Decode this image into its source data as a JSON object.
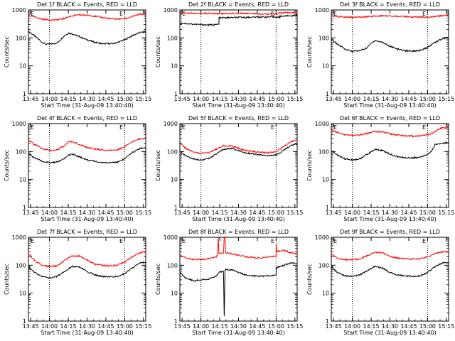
{
  "chart_data": [
    {
      "type": "line",
      "title": "Det 1f BLACK = Events, RED = LLD",
      "xlabel": "Start Time (31-Aug-09 13:40:40)",
      "ylabel": "Counts/sec",
      "ylim": [
        1,
        1000
      ],
      "yscale": "log",
      "xlim": [
        13.72,
        15.28
      ],
      "x_ticks": [
        "13:45",
        "14:00",
        "14:15",
        "14:30",
        "14:45",
        "15:00",
        "15:15"
      ],
      "y_ticks": [
        "1",
        "10",
        "100",
        "1000"
      ],
      "vlines": [
        14.0,
        15.0
      ],
      "markers": [
        "E",
        "E"
      ],
      "series": [
        {
          "color": "#000000",
          "x": [
            13.72,
            13.8,
            13.9,
            13.95,
            14.0,
            14.1,
            14.2,
            14.25,
            14.3,
            14.4,
            14.5,
            14.6,
            14.7,
            14.8,
            14.85,
            14.9,
            15.0,
            15.1,
            15.2,
            15.28
          ],
          "values": [
            170,
            120,
            70,
            60,
            60,
            65,
            120,
            150,
            140,
            110,
            85,
            70,
            62,
            62,
            63,
            68,
            85,
            120,
            155,
            165
          ]
        },
        {
          "color": "#ff0000",
          "x": [
            13.72,
            13.8,
            13.9,
            14.0,
            14.1,
            14.2,
            14.3,
            14.4,
            14.5,
            14.6,
            14.7,
            14.8,
            14.9,
            15.0,
            15.1,
            15.2,
            15.28
          ],
          "values": [
            640,
            560,
            470,
            440,
            440,
            500,
            620,
            660,
            650,
            600,
            540,
            490,
            470,
            490,
            580,
            700,
            720
          ]
        }
      ]
    },
    {
      "type": "line",
      "title": "Det 2f BLACK = Events, RED = LLD",
      "xlabel": "Start Time (31-Aug-09 13:40:40)",
      "ylabel": "Counts/sec",
      "ylim": [
        1,
        1000
      ],
      "yscale": "log",
      "xlim": [
        13.72,
        15.28
      ],
      "x_ticks": [
        "13:45",
        "14:00",
        "14:15",
        "14:30",
        "14:45",
        "15:00",
        "15:15"
      ],
      "y_ticks": [
        "1",
        "10",
        "100",
        "1000"
      ],
      "vlines": [
        14.0,
        15.0
      ],
      "markers": [
        "E",
        "E"
      ],
      "series": [
        {
          "color": "#000000",
          "x": [
            13.72,
            13.9,
            14.0,
            14.1,
            14.2,
            14.24,
            14.24,
            14.5,
            14.8,
            15.0,
            15.05,
            15.05,
            15.2,
            15.28
          ],
          "values": [
            340,
            310,
            300,
            290,
            300,
            310,
            520,
            540,
            560,
            560,
            540,
            600,
            620,
            640
          ]
        },
        {
          "color": "#ff0000",
          "x": [
            13.72,
            14.0,
            14.3,
            14.6,
            14.9,
            15.0,
            15.05,
            15.2,
            15.28
          ],
          "values": [
            780,
            760,
            740,
            760,
            720,
            700,
            800,
            780,
            800
          ]
        }
      ]
    },
    {
      "type": "line",
      "title": "Det 3f BLACK = Events, RED = LLD",
      "xlabel": "Start Time (31-Aug-09 13:40:40)",
      "ylabel": "Counts/sec",
      "ylim": [
        1,
        1000
      ],
      "yscale": "log",
      "xlim": [
        13.72,
        15.28
      ],
      "x_ticks": [
        "13:45",
        "14:00",
        "14:15",
        "14:30",
        "14:45",
        "15:00",
        "15:15"
      ],
      "y_ticks": [
        "1",
        "10",
        "100",
        "1000"
      ],
      "vlines": [
        14.0,
        15.0
      ],
      "markers": [
        "E",
        "E"
      ],
      "series": [
        {
          "color": "#000000",
          "x": [
            13.72,
            13.8,
            13.9,
            14.0,
            14.1,
            14.2,
            14.25,
            14.3,
            14.4,
            14.5,
            14.6,
            14.7,
            14.8,
            14.9,
            15.0,
            15.1,
            15.2,
            15.28
          ],
          "values": [
            90,
            60,
            40,
            33,
            35,
            45,
            65,
            80,
            70,
            50,
            40,
            35,
            34,
            35,
            45,
            70,
            95,
            105
          ]
        },
        {
          "color": "#ff0000",
          "x": [
            13.72,
            13.9,
            14.0,
            14.2,
            14.4,
            14.6,
            14.8,
            15.0,
            15.2,
            15.28
          ],
          "values": [
            600,
            560,
            540,
            580,
            620,
            600,
            560,
            560,
            620,
            650
          ]
        }
      ]
    },
    {
      "type": "line",
      "title": "Det 4f BLACK = Events, RED = LLD",
      "xlabel": "Start Time (31-Aug-09 13:40:40)",
      "ylabel": "Counts/sec",
      "ylim": [
        1,
        1000
      ],
      "yscale": "log",
      "xlim": [
        13.72,
        15.28
      ],
      "x_ticks": [
        "13:45",
        "14:00",
        "14:15",
        "14:30",
        "14:45",
        "15:00",
        "15:15"
      ],
      "y_ticks": [
        "1",
        "10",
        "100",
        "1000"
      ],
      "vlines": [
        14.0,
        15.0
      ],
      "markers": [
        "E",
        "E"
      ],
      "series": [
        {
          "color": "#000000",
          "x": [
            13.72,
            13.8,
            13.9,
            14.0,
            14.1,
            14.2,
            14.25,
            14.3,
            14.4,
            14.5,
            14.6,
            14.7,
            14.8,
            14.9,
            15.0,
            15.1,
            15.2,
            15.28
          ],
          "values": [
            85,
            60,
            45,
            40,
            42,
            55,
            75,
            80,
            65,
            50,
            45,
            40,
            40,
            42,
            55,
            90,
            130,
            140
          ]
        },
        {
          "color": "#ff0000",
          "x": [
            13.72,
            13.8,
            13.9,
            14.0,
            14.1,
            14.2,
            14.25,
            14.3,
            14.4,
            14.5,
            14.6,
            14.7,
            14.8,
            14.9,
            15.0,
            15.1,
            15.2,
            15.28
          ],
          "values": [
            260,
            180,
            130,
            110,
            115,
            160,
            220,
            230,
            180,
            140,
            125,
            115,
            110,
            115,
            150,
            220,
            290,
            300
          ]
        }
      ]
    },
    {
      "type": "line",
      "title": "Det 5f BLACK = Events, RED = LLD",
      "xlabel": "Start Time (31-Aug-09 13:40:40)",
      "ylabel": "Counts/sec",
      "ylim": [
        1,
        1000
      ],
      "yscale": "log",
      "xlim": [
        13.72,
        15.28
      ],
      "x_ticks": [
        "13:45",
        "14:00",
        "14:15",
        "14:30",
        "14:45",
        "15:00",
        "15:15"
      ],
      "y_ticks": [
        "1",
        "10",
        "100",
        "1000"
      ],
      "vlines": [
        14.0,
        15.0
      ],
      "markers": [
        "E",
        "E"
      ],
      "series": [
        {
          "color": "#000000",
          "x": [
            13.72,
            13.8,
            13.9,
            14.0,
            14.1,
            14.2,
            14.3,
            14.4,
            14.5,
            14.6,
            14.7,
            14.8,
            14.9,
            15.0,
            15.1,
            15.2,
            15.28
          ],
          "values": [
            100,
            70,
            55,
            50,
            55,
            80,
            120,
            130,
            110,
            90,
            80,
            75,
            70,
            75,
            110,
            170,
            190
          ]
        },
        {
          "color": "#ff0000",
          "x": [
            13.72,
            13.8,
            13.9,
            14.0,
            14.1,
            14.2,
            14.3,
            14.4,
            14.5,
            14.6,
            14.7,
            14.8,
            14.9,
            15.0,
            15.1,
            15.2,
            15.28
          ],
          "values": [
            200,
            130,
            95,
            85,
            90,
            120,
            160,
            160,
            130,
            110,
            100,
            95,
            90,
            100,
            150,
            230,
            250
          ]
        }
      ]
    },
    {
      "type": "line",
      "title": "Det 6f BLACK = Events, RED = LLD",
      "xlabel": "Start Time (31-Aug-09 13:40:40)",
      "ylabel": "Counts/sec",
      "ylim": [
        1,
        1000
      ],
      "yscale": "log",
      "xlim": [
        13.72,
        15.28
      ],
      "x_ticks": [
        "13:45",
        "14:00",
        "14:15",
        "14:30",
        "14:45",
        "15:00",
        "15:15"
      ],
      "y_ticks": [
        "1",
        "10",
        "100",
        "1000"
      ],
      "vlines": [
        14.0,
        15.0
      ],
      "markers": [
        "E",
        "E"
      ],
      "series": [
        {
          "color": "#000000",
          "x": [
            13.72,
            13.8,
            13.9,
            14.0,
            14.1,
            14.2,
            14.3,
            14.4,
            14.5,
            14.6,
            14.7,
            14.8,
            14.9,
            15.0,
            15.05,
            15.1,
            15.2,
            15.28
          ],
          "values": [
            110,
            75,
            55,
            50,
            55,
            80,
            120,
            110,
            80,
            65,
            60,
            60,
            62,
            80,
            100,
            180,
            200,
            210
          ]
        },
        {
          "color": "#ff0000",
          "x": [
            13.72,
            13.8,
            13.9,
            14.0,
            14.1,
            14.2,
            14.3,
            14.4,
            14.5,
            14.6,
            14.7,
            14.8,
            14.9,
            15.0,
            15.1,
            15.15,
            15.2,
            15.28
          ],
          "values": [
            600,
            480,
            400,
            380,
            390,
            450,
            520,
            500,
            430,
            390,
            370,
            360,
            360,
            400,
            500,
            650,
            700,
            720
          ]
        }
      ]
    },
    {
      "type": "line",
      "title": "Det 7f BLACK = Events, RED = LLD",
      "xlabel": "Start Time (31-Aug-09 13:40:40)",
      "ylabel": "Counts/sec",
      "ylim": [
        1,
        1000
      ],
      "yscale": "log",
      "xlim": [
        13.72,
        15.28
      ],
      "x_ticks": [
        "13:45",
        "14:00",
        "14:15",
        "14:30",
        "14:45",
        "15:00",
        "15:15"
      ],
      "y_ticks": [
        "1",
        "10",
        "100",
        "1000"
      ],
      "vlines": [
        14.0,
        15.0
      ],
      "markers": [
        "E",
        "E"
      ],
      "series": [
        {
          "color": "#000000",
          "x": [
            13.72,
            13.8,
            13.9,
            14.0,
            14.1,
            14.2,
            14.3,
            14.4,
            14.5,
            14.6,
            14.7,
            14.8,
            14.9,
            15.0,
            15.1,
            15.2,
            15.28
          ],
          "values": [
            90,
            55,
            40,
            35,
            40,
            60,
            90,
            85,
            60,
            45,
            40,
            38,
            40,
            50,
            80,
            120,
            130
          ]
        },
        {
          "color": "#ff0000",
          "x": [
            13.72,
            13.8,
            13.9,
            14.0,
            14.1,
            14.2,
            14.3,
            14.4,
            14.5,
            14.6,
            14.7,
            14.8,
            14.9,
            15.0,
            15.1,
            15.2,
            15.28
          ],
          "values": [
            260,
            150,
            100,
            90,
            95,
            150,
            220,
            210,
            150,
            110,
            100,
            95,
            100,
            130,
            200,
            280,
            300
          ]
        }
      ]
    },
    {
      "type": "line",
      "title": "Det 8f BLACK = Events, RED = LLD",
      "xlabel": "Start Time (31-Aug-09 13:40:40)",
      "ylabel": "Counts/sec",
      "ylim": [
        1,
        1000
      ],
      "yscale": "log",
      "xlim": [
        13.72,
        15.28
      ],
      "x_ticks": [
        "13:45",
        "14:00",
        "14:15",
        "14:30",
        "14:45",
        "15:00",
        "15:15"
      ],
      "y_ticks": [
        "1",
        "10",
        "100",
        "1000"
      ],
      "vlines": [
        14.0,
        15.0
      ],
      "markers": [
        "E",
        "E"
      ],
      "series": [
        {
          "color": "#000000",
          "x": [
            13.72,
            13.8,
            13.9,
            14.0,
            14.1,
            14.2,
            14.24,
            14.28,
            14.3,
            14.31,
            14.32,
            14.4,
            14.5,
            14.6,
            14.7,
            14.8,
            14.9,
            15.0,
            15.0,
            15.1,
            15.2,
            15.28
          ],
          "values": [
            55,
            35,
            28,
            30,
            32,
            40,
            55,
            60,
            60,
            1.5,
            70,
            70,
            55,
            45,
            42,
            40,
            42,
            45,
            80,
            100,
            120,
            120
          ]
        },
        {
          "color": "#ff0000",
          "x": [
            13.72,
            13.8,
            13.9,
            14.0,
            14.1,
            14.2,
            14.22,
            14.23,
            14.24,
            14.3,
            14.31,
            14.32,
            14.33,
            14.4,
            14.5,
            14.6,
            14.7,
            14.8,
            14.9,
            15.0,
            15.0,
            15.01,
            15.02,
            15.1,
            15.2,
            15.28
          ],
          "values": [
            230,
            180,
            160,
            160,
            170,
            200,
            230,
            1000,
            260,
            270,
            1000,
            1000,
            280,
            260,
            230,
            200,
            190,
            180,
            200,
            210,
            600,
            300,
            320,
            340,
            280,
            250
          ]
        }
      ]
    },
    {
      "type": "line",
      "title": "Det 9f BLACK = Events, RED = LLD",
      "xlabel": "Start Time (31-Aug-09 13:40:40)",
      "ylabel": "Counts/sec",
      "ylim": [
        1,
        1000
      ],
      "yscale": "log",
      "xlim": [
        13.72,
        15.28
      ],
      "x_ticks": [
        "13:45",
        "14:00",
        "14:15",
        "14:30",
        "14:45",
        "15:00",
        "15:15"
      ],
      "y_ticks": [
        "1",
        "10",
        "100",
        "1000"
      ],
      "vlines": [
        14.0,
        15.0
      ],
      "markers": [
        "E",
        "E"
      ],
      "series": [
        {
          "color": "#000000",
          "x": [
            13.72,
            13.8,
            13.9,
            14.0,
            14.1,
            14.2,
            14.3,
            14.4,
            14.5,
            14.6,
            14.7,
            14.8,
            14.9,
            15.0,
            15.1,
            15.2,
            15.28
          ],
          "values": [
            90,
            55,
            42,
            40,
            45,
            65,
            90,
            80,
            55,
            45,
            42,
            40,
            42,
            55,
            90,
            120,
            125
          ]
        },
        {
          "color": "#ff0000",
          "x": [
            13.72,
            13.8,
            13.9,
            14.0,
            14.1,
            14.2,
            14.3,
            14.4,
            14.5,
            14.6,
            14.7,
            14.8,
            14.9,
            15.0,
            15.1,
            15.2,
            15.28
          ],
          "values": [
            250,
            180,
            160,
            160,
            170,
            220,
            290,
            280,
            210,
            180,
            170,
            165,
            170,
            200,
            260,
            300,
            300
          ]
        }
      ]
    }
  ]
}
